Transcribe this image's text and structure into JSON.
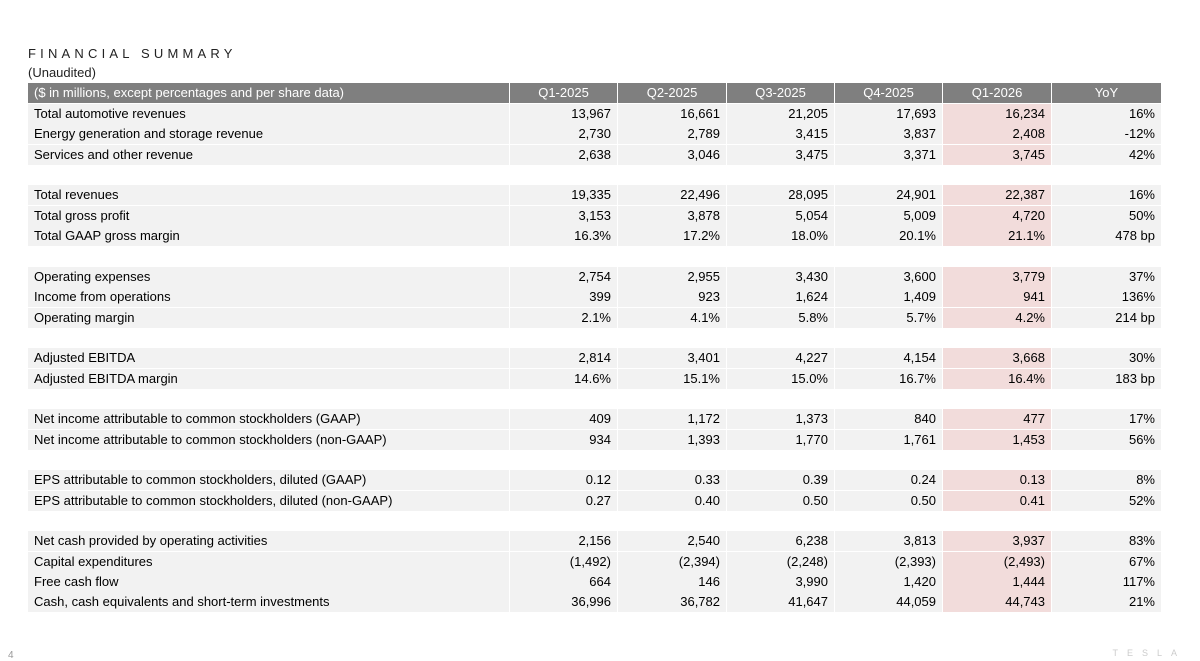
{
  "header": {
    "title": "FINANCIAL SUMMARY",
    "subtitle": "(Unaudited)"
  },
  "table": {
    "columns": [
      "($ in millions, except percentages and per share data)",
      "Q1-2025",
      "Q2-2025",
      "Q3-2025",
      "Q4-2025",
      "Q1-2026",
      "YoY"
    ],
    "groups": [
      [
        [
          "Total automotive revenues",
          "13,967",
          "16,661",
          "21,205",
          "17,693",
          "16,234",
          "16%"
        ],
        [
          "Energy generation and storage revenue",
          "2,730",
          "2,789",
          "3,415",
          "3,837",
          "2,408",
          "-12%"
        ],
        [
          "Services and other revenue",
          "2,638",
          "3,046",
          "3,475",
          "3,371",
          "3,745",
          "42%"
        ]
      ],
      [
        [
          "Total revenues",
          "19,335",
          "22,496",
          "28,095",
          "24,901",
          "22,387",
          "16%"
        ],
        [
          "Total gross profit",
          "3,153",
          "3,878",
          "5,054",
          "5,009",
          "4,720",
          "50%"
        ],
        [
          "Total GAAP gross margin",
          "16.3%",
          "17.2%",
          "18.0%",
          "20.1%",
          "21.1%",
          "478 bp"
        ]
      ],
      [
        [
          "Operating expenses",
          "2,754",
          "2,955",
          "3,430",
          "3,600",
          "3,779",
          "37%"
        ],
        [
          "Income from operations",
          "399",
          "923",
          "1,624",
          "1,409",
          "941",
          "136%"
        ],
        [
          "Operating margin",
          "2.1%",
          "4.1%",
          "5.8%",
          "5.7%",
          "4.2%",
          "214 bp"
        ]
      ],
      [
        [
          "Adjusted EBITDA",
          "2,814",
          "3,401",
          "4,227",
          "4,154",
          "3,668",
          "30%"
        ],
        [
          "Adjusted EBITDA margin",
          "14.6%",
          "15.1%",
          "15.0%",
          "16.7%",
          "16.4%",
          "183 bp"
        ]
      ],
      [
        [
          "Net income attributable to common stockholders (GAAP)",
          "409",
          "1,172",
          "1,373",
          "840",
          "477",
          "17%"
        ],
        [
          "Net income attributable to common stockholders (non-GAAP)",
          "934",
          "1,393",
          "1,770",
          "1,761",
          "1,453",
          "56%"
        ]
      ],
      [
        [
          "EPS attributable to common stockholders, diluted (GAAP)",
          "0.12",
          "0.33",
          "0.39",
          "0.24",
          "0.13",
          "8%"
        ],
        [
          "EPS attributable to common stockholders, diluted (non-GAAP)",
          "0.27",
          "0.40",
          "0.50",
          "0.50",
          "0.41",
          "52%"
        ]
      ],
      [
        [
          "Net cash provided by operating activities",
          "2,156",
          "2,540",
          "6,238",
          "3,813",
          "3,937",
          "83%"
        ],
        [
          "Capital expenditures",
          "(1,492)",
          "(2,394)",
          "(2,248)",
          "(2,393)",
          "(2,493)",
          "67%"
        ],
        [
          "Free cash flow",
          "664",
          "146",
          "3,990",
          "1,420",
          "1,444",
          "117%"
        ],
        [
          "Cash, cash equivalents and short-term investments",
          "36,996",
          "36,782",
          "41,647",
          "44,059",
          "44,743",
          "21%"
        ]
      ]
    ]
  },
  "footer": {
    "page": "4",
    "logo": "TESLA"
  }
}
